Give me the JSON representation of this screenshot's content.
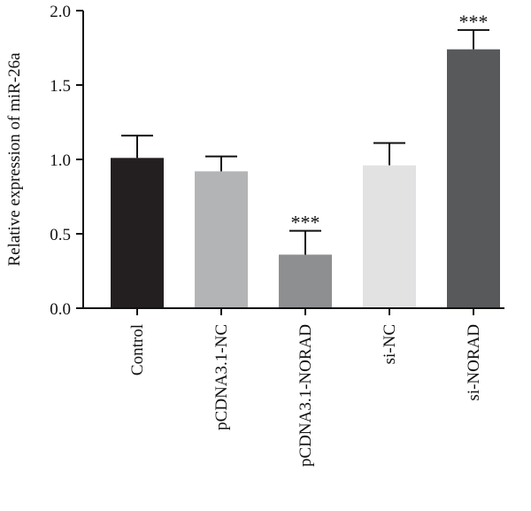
{
  "chart_data": {
    "type": "bar",
    "title": "",
    "xlabel": "",
    "ylabel": "Relative expression of miR-26a",
    "ylim": [
      0,
      2.0
    ],
    "yticks": [
      "0.0",
      "0.5",
      "1.0",
      "1.5",
      "2.0"
    ],
    "categories": [
      "Control",
      "pCDNA3.1-NC",
      "pCDNA3.1-NORAD",
      "si-NC",
      "si-NORAD"
    ],
    "values": [
      1.01,
      0.92,
      0.36,
      0.96,
      1.74
    ],
    "errors": [
      0.15,
      0.1,
      0.16,
      0.15,
      0.13
    ],
    "significance": [
      "",
      "",
      "***",
      "",
      "***"
    ],
    "colors": [
      "#231f20",
      "#b3b4b6",
      "#8e8f91",
      "#e2e2e3",
      "#58595b"
    ],
    "grid": false,
    "legend": "none"
  }
}
